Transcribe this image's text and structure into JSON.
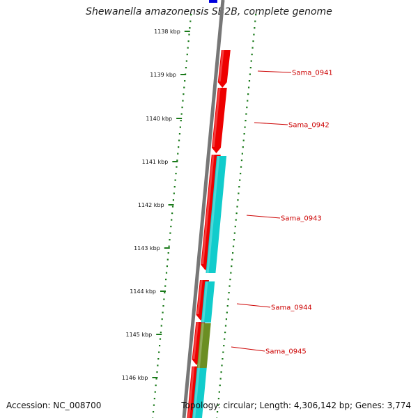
{
  "title": "Shewanella amazonensis SB2B, complete genome",
  "footer": {
    "accession": "Accession: NC_008700",
    "summary": "Topology: circular; Length: 4,306,142 bp; Genes: 3,774"
  },
  "colors": {
    "backbone": "#777777",
    "forward_strand": "#ee0000",
    "reverse_strand": "#11cccc",
    "olive_feature": "#6b8e23",
    "blue_feature": "#0000dd",
    "gc_track": "#1a7a1a",
    "label_text": "#cc0000"
  },
  "axis": {
    "ticks": [
      {
        "label": "1138 kbp"
      },
      {
        "label": "1139 kbp"
      },
      {
        "label": "1140 kbp"
      },
      {
        "label": "1141 kbp"
      },
      {
        "label": "1142 kbp"
      },
      {
        "label": "1143 kbp"
      },
      {
        "label": "1144 kbp"
      },
      {
        "label": "1145 kbp"
      },
      {
        "label": "1146 kbp"
      }
    ]
  },
  "genes": [
    {
      "name": "Sama_0941"
    },
    {
      "name": "Sama_0942"
    },
    {
      "name": "Sama_0943"
    },
    {
      "name": "Sama_0944"
    },
    {
      "name": "Sama_0945"
    }
  ]
}
